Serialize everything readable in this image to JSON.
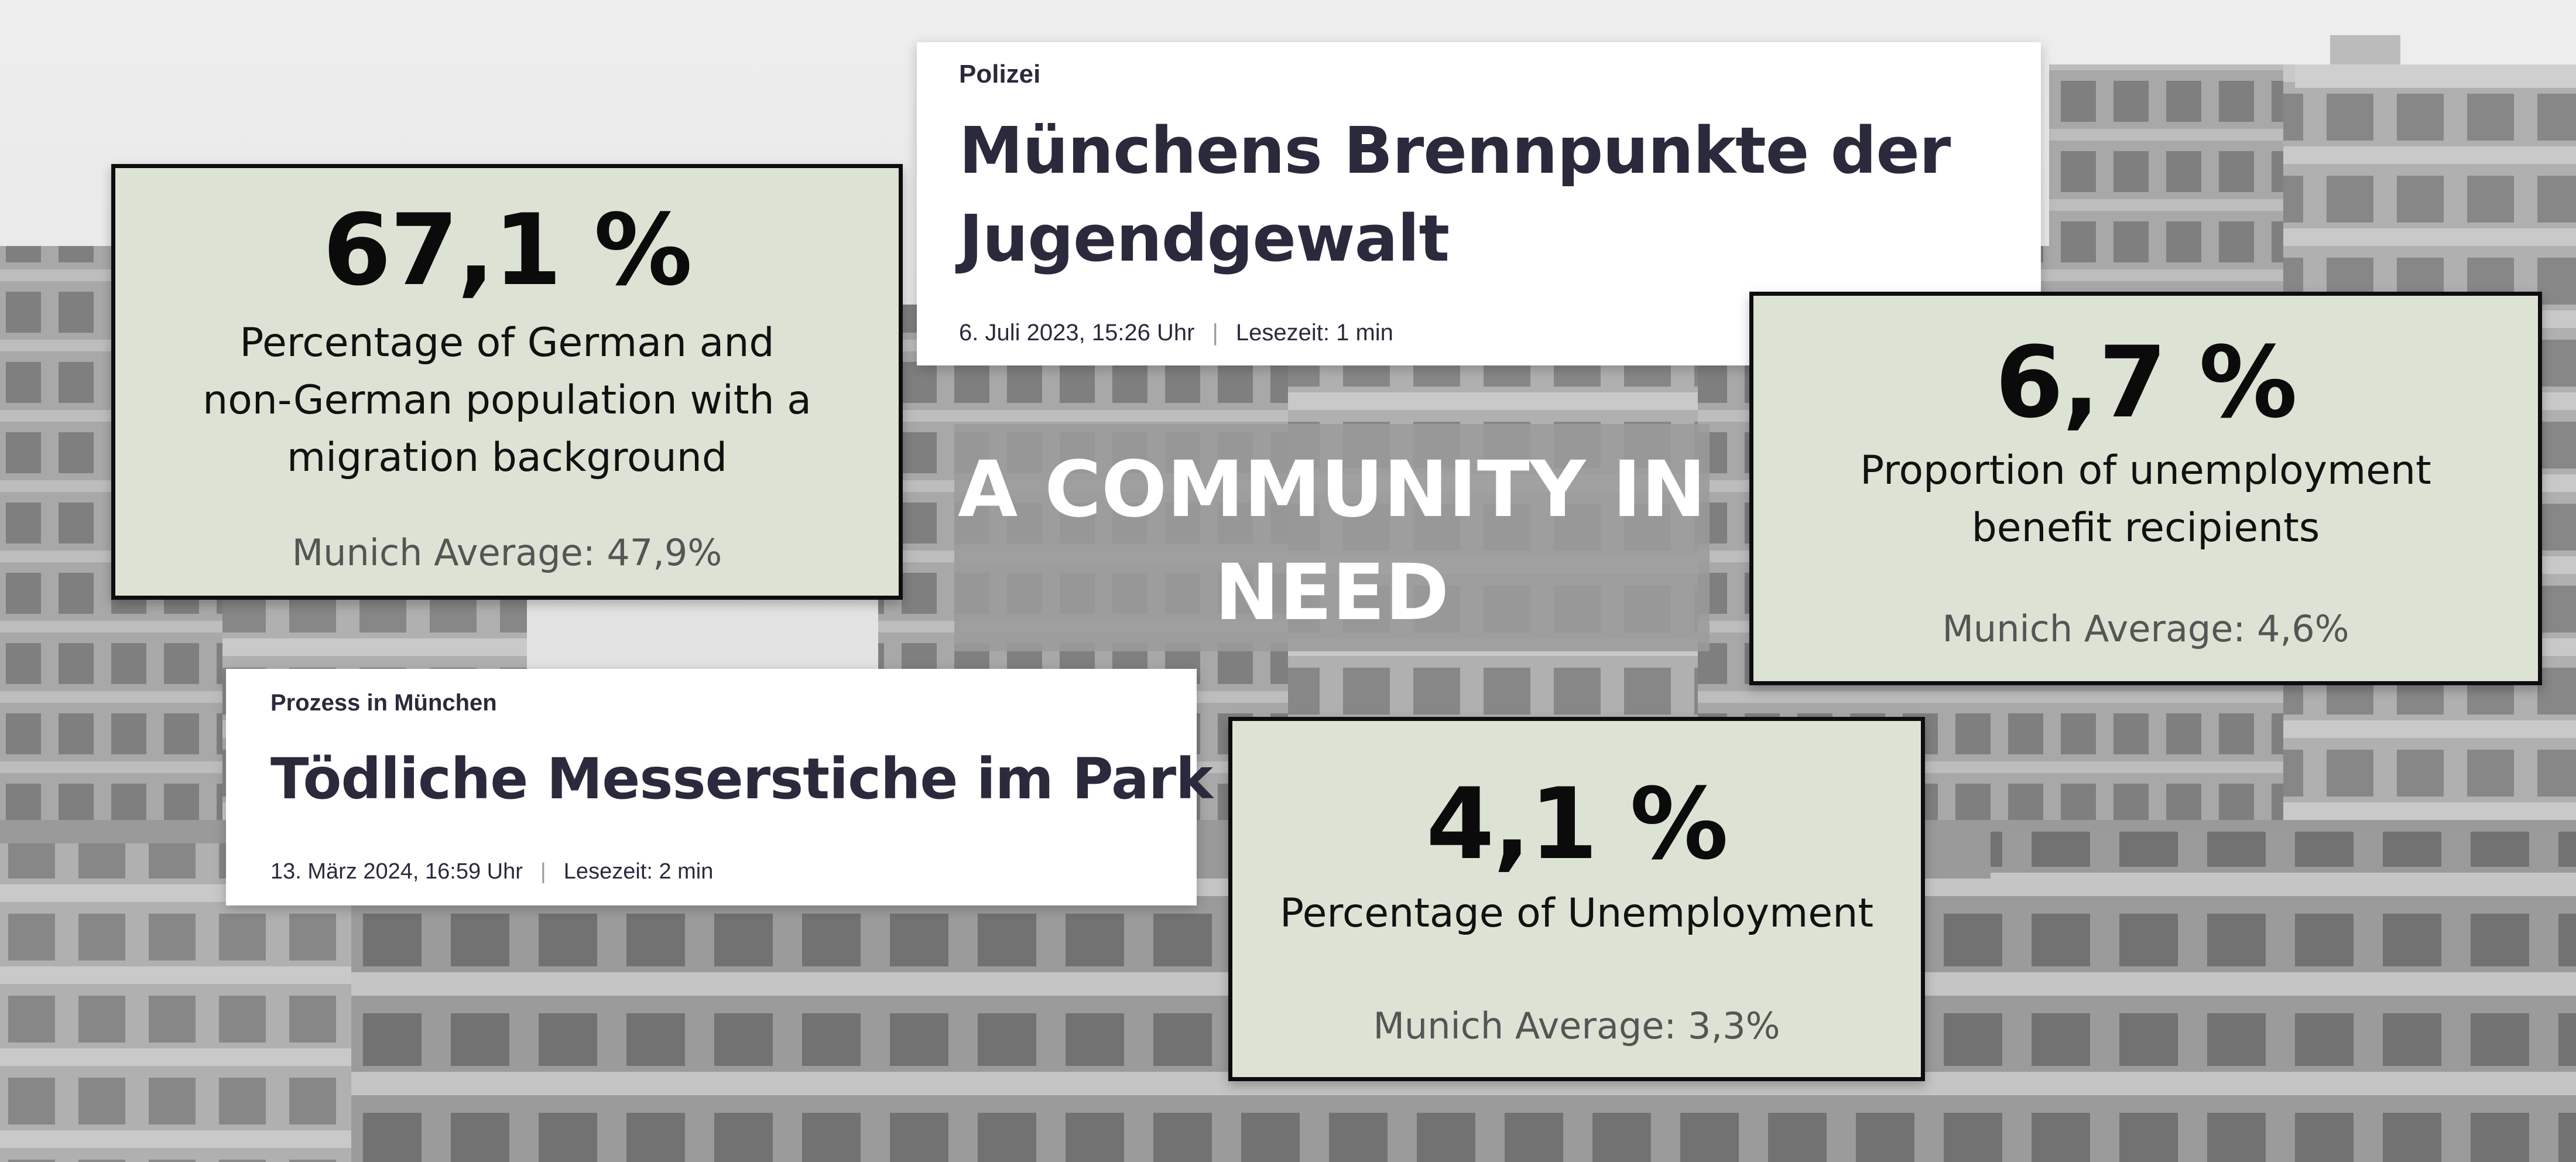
{
  "banner": {
    "line1": "A COMMUNITY IN",
    "line2": "NEED"
  },
  "stats": {
    "migration": {
      "value": "67,1 %",
      "label_lines": [
        "Percentage of German and",
        "non-German population with a",
        "migration background"
      ],
      "average": "Munich Average: 47,9%"
    },
    "benefit": {
      "value": "6,7 %",
      "label_lines": [
        "Proportion of unemployment",
        "benefit recipients"
      ],
      "average": "Munich Average: 4,6%"
    },
    "unemployment": {
      "value": "4,1 %",
      "label_lines": [
        "Percentage of Unemployment"
      ],
      "average": "Munich Average: 3,3%"
    }
  },
  "articles": {
    "jugendgewalt": {
      "category": "Polizei",
      "title_lines": [
        "Münchens Brennpunkte der",
        "Jugendgewalt"
      ],
      "date": "6. Juli 2023, 15:26 Uhr",
      "separator": "|",
      "reading_time": "Lesezeit: 1 min"
    },
    "messerstiche": {
      "category": "Prozess in München",
      "title_lines": [
        "Tödliche Messerstiche im Park"
      ],
      "date": "13. März 2024, 16:59 Uhr",
      "separator": "|",
      "reading_time": "Lesezeit: 2 min"
    }
  },
  "colors": {
    "stat_box_bg": "#dde3d4",
    "article_text": "#2a2a3c",
    "banner_bg": "#9b9b9b"
  }
}
